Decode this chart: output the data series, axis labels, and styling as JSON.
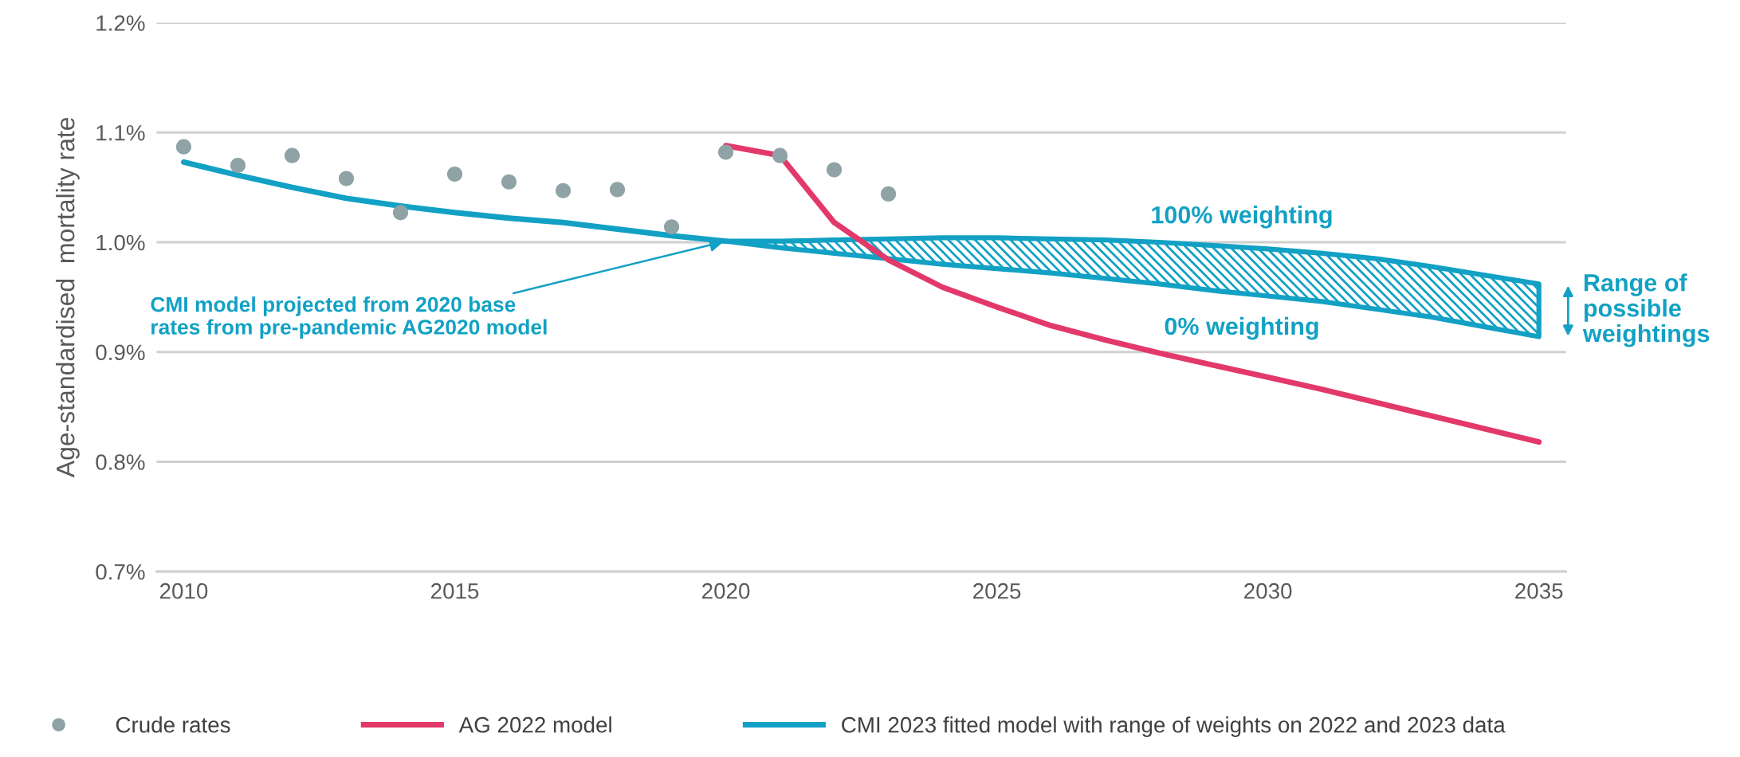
{
  "chart_data": {
    "type": "line",
    "ylabel": "Age-standardised  mortality rate",
    "x": [
      2010,
      2011,
      2012,
      2013,
      2014,
      2015,
      2016,
      2017,
      2018,
      2019,
      2020,
      2021,
      2022,
      2023,
      2024,
      2025,
      2026,
      2027,
      2028,
      2029,
      2030,
      2031,
      2032,
      2033,
      2034,
      2035
    ],
    "series": [
      {
        "name": "Crude rates",
        "type": "scatter",
        "color": "#8fa3a6",
        "x": [
          2010,
          2011,
          2012,
          2013,
          2014,
          2015,
          2016,
          2017,
          2018,
          2019,
          2020,
          2021,
          2022,
          2023
        ],
        "values": [
          1.087,
          1.07,
          1.079,
          1.058,
          1.027,
          1.062,
          1.055,
          1.047,
          1.048,
          1.014,
          1.082,
          1.079,
          1.066,
          1.044
        ]
      },
      {
        "name": "AG 2022 model",
        "color": "#e2396a",
        "x": [
          2020,
          2021,
          2022,
          2023,
          2024,
          2025,
          2026,
          2027,
          2028,
          2029,
          2030,
          2031,
          2032,
          2033,
          2034,
          2035
        ],
        "values": [
          1.088,
          1.079,
          1.018,
          0.984,
          0.959,
          0.941,
          0.924,
          0.911,
          0.899,
          0.888,
          0.877,
          0.866,
          0.854,
          0.842,
          0.83,
          0.818
        ]
      },
      {
        "name": "CMI 2023 fitted model with range of weights on 2022 and 2023 data",
        "color": "#12a1c4",
        "values": [
          1.073,
          1.061,
          1.05,
          1.04,
          1.033,
          1.027,
          1.022,
          1.018,
          1.012,
          1.006,
          1.001,
          null,
          null,
          null,
          null,
          null,
          null,
          null,
          null,
          null,
          null,
          null,
          null,
          null,
          null,
          null
        ],
        "lower": [
          null,
          null,
          null,
          null,
          null,
          null,
          null,
          null,
          null,
          null,
          1.001,
          0.995,
          0.99,
          0.985,
          0.98,
          0.976,
          0.972,
          0.967,
          0.962,
          0.956,
          0.951,
          0.946,
          0.939,
          0.932,
          0.923,
          0.914
        ],
        "upper": [
          null,
          null,
          null,
          null,
          null,
          null,
          null,
          null,
          null,
          null,
          1.001,
          1.001,
          1.002,
          1.003,
          1.004,
          1.004,
          1.003,
          1.002,
          1.0,
          0.997,
          0.994,
          0.99,
          0.985,
          0.978,
          0.97,
          0.962
        ]
      }
    ],
    "xlim": [
      2009.5,
      2035.5
    ],
    "xticks": [
      2010,
      2015,
      2020,
      2025,
      2030,
      2035
    ],
    "ylim": [
      0.7,
      1.2
    ],
    "yticks": [
      {
        "value": 0.7,
        "label": "0.7%"
      },
      {
        "value": 0.8,
        "label": "0.8%"
      },
      {
        "value": 0.9,
        "label": "0.9%"
      },
      {
        "value": 1.0,
        "label": "1.0%"
      },
      {
        "value": 1.1,
        "label": "1.1%"
      },
      {
        "value": 1.2,
        "label": "1.2%"
      }
    ],
    "grid": "y",
    "legend": "bottom",
    "line_style": "solid",
    "annotations": [
      {
        "text": "CMI model projected from 2020 base\nrates from pre-pandemic AG2020 model",
        "x": 2020,
        "y": 1.001
      },
      "100% weighting",
      "0% weighting",
      "Range of\npossible\nweightings"
    ]
  }
}
